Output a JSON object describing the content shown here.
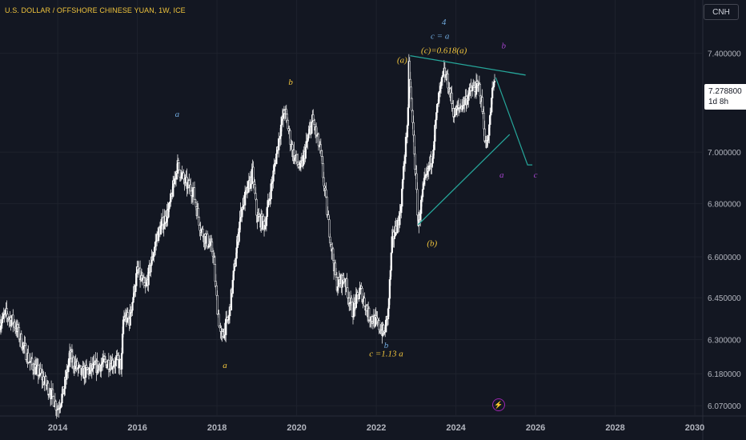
{
  "header": {
    "title": "U.S. DOLLAR / OFFSHORE CHINESE YUAN, 1W, ICE",
    "currency_badge": "CNH"
  },
  "price_tag": {
    "price": "7.278800",
    "countdown": "1d 8h"
  },
  "event_marker_icon": "lightning-icon",
  "colors": {
    "background": "#131722",
    "candles": "#ffffff",
    "wave_yellow": "#f0c43c",
    "wave_blue": "#6fa8dc",
    "wave_purple": "#a142c9",
    "trendline": "#26a69a"
  },
  "chart_data": {
    "type": "candlestick",
    "title": "U.S. DOLLAR / OFFSHORE CHINESE YUAN, 1W, ICE",
    "x_range": [
      2012.55,
      2030.2
    ],
    "y_range": [
      6.035,
      7.625
    ],
    "y_scale": "log",
    "grid": true,
    "x_ticks": [
      "2014",
      "2016",
      "2018",
      "2020",
      "2022",
      "2024",
      "2026",
      "2028",
      "2030"
    ],
    "y_ticks": [
      "7.400000",
      "7.000000",
      "6.800000",
      "6.600000",
      "6.450000",
      "6.300000",
      "6.180000",
      "6.070000"
    ],
    "price_path_close": [
      [
        2012.55,
        6.36
      ],
      [
        2012.7,
        6.39
      ],
      [
        2012.9,
        6.36
      ],
      [
        2013.1,
        6.29
      ],
      [
        2013.3,
        6.22
      ],
      [
        2013.6,
        6.17
      ],
      [
        2013.8,
        6.12
      ],
      [
        2014.0,
        6.06
      ],
      [
        2014.15,
        6.12
      ],
      [
        2014.3,
        6.24
      ],
      [
        2014.6,
        6.18
      ],
      [
        2014.9,
        6.2
      ],
      [
        2015.2,
        6.22
      ],
      [
        2015.5,
        6.22
      ],
      [
        2015.6,
        6.21
      ],
      [
        2015.65,
        6.38
      ],
      [
        2015.8,
        6.37
      ],
      [
        2016.0,
        6.55
      ],
      [
        2016.2,
        6.48
      ],
      [
        2016.5,
        6.68
      ],
      [
        2016.8,
        6.78
      ],
      [
        2017.0,
        6.95
      ],
      [
        2017.2,
        6.88
      ],
      [
        2017.4,
        6.85
      ],
      [
        2017.6,
        6.7
      ],
      [
        2017.9,
        6.62
      ],
      [
        2018.0,
        6.43
      ],
      [
        2018.1,
        6.3
      ],
      [
        2018.3,
        6.38
      ],
      [
        2018.6,
        6.77
      ],
      [
        2018.9,
        6.92
      ],
      [
        2019.0,
        6.75
      ],
      [
        2019.2,
        6.72
      ],
      [
        2019.4,
        6.9
      ],
      [
        2019.6,
        7.1
      ],
      [
        2019.7,
        7.17
      ],
      [
        2019.9,
        7.0
      ],
      [
        2020.1,
        6.93
      ],
      [
        2020.4,
        7.13
      ],
      [
        2020.6,
        7.0
      ],
      [
        2020.8,
        6.72
      ],
      [
        2021.0,
        6.5
      ],
      [
        2021.2,
        6.52
      ],
      [
        2021.4,
        6.4
      ],
      [
        2021.6,
        6.48
      ],
      [
        2021.8,
        6.39
      ],
      [
        2022.0,
        6.36
      ],
      [
        2022.2,
        6.32
      ],
      [
        2022.3,
        6.4
      ],
      [
        2022.4,
        6.66
      ],
      [
        2022.6,
        6.76
      ],
      [
        2022.8,
        7.15
      ],
      [
        2022.82,
        7.35
      ],
      [
        2022.95,
        7.02
      ],
      [
        2023.05,
        6.72
      ],
      [
        2023.2,
        6.87
      ],
      [
        2023.4,
        6.98
      ],
      [
        2023.55,
        7.2
      ],
      [
        2023.7,
        7.32
      ],
      [
        2023.8,
        7.28
      ],
      [
        2023.95,
        7.15
      ],
      [
        2024.2,
        7.2
      ],
      [
        2024.4,
        7.25
      ],
      [
        2024.6,
        7.26
      ],
      [
        2024.7,
        7.12
      ],
      [
        2024.75,
        7.01
      ],
      [
        2024.85,
        7.12
      ],
      [
        2024.93,
        7.26
      ],
      [
        2024.98,
        7.28
      ]
    ],
    "annotations": [
      {
        "text": "a",
        "x": 2017.0,
        "y": 7.14,
        "color": "blue"
      },
      {
        "text": "a",
        "x": 2018.2,
        "y": 6.2,
        "color": "yellow"
      },
      {
        "text": "b",
        "x": 2019.85,
        "y": 7.27,
        "color": "yellow"
      },
      {
        "text": "b",
        "x": 2022.25,
        "y": 6.27,
        "color": "blue"
      },
      {
        "text": "c =1.13 a",
        "x": 2022.25,
        "y": 6.24,
        "color": "yellow"
      },
      {
        "text": "(a)",
        "x": 2022.65,
        "y": 7.36,
        "color": "yellow"
      },
      {
        "text": "4",
        "x": 2023.7,
        "y": 7.52,
        "color": "blue"
      },
      {
        "text": "c = a",
        "x": 2023.6,
        "y": 7.46,
        "color": "blue"
      },
      {
        "text": "(c)=0.618(a)",
        "x": 2023.7,
        "y": 7.4,
        "color": "yellow"
      },
      {
        "text": "(b)",
        "x": 2023.4,
        "y": 6.64,
        "color": "yellow"
      },
      {
        "text": "b",
        "x": 2025.2,
        "y": 7.42,
        "color": "purple"
      },
      {
        "text": "a",
        "x": 2025.15,
        "y": 6.9,
        "color": "purple"
      },
      {
        "text": "c",
        "x": 2026.0,
        "y": 6.9,
        "color": "purple"
      }
    ],
    "trendlines": [
      {
        "from": [
          2022.85,
          7.39
        ],
        "to": [
          2025.75,
          7.31
        ]
      },
      {
        "from": [
          2023.05,
          6.72
        ],
        "to": [
          2025.35,
          7.07
        ]
      }
    ],
    "projection": [
      [
        2025.0,
        7.3
      ],
      [
        2025.8,
        6.95
      ],
      [
        2025.92,
        6.95
      ]
    ]
  }
}
